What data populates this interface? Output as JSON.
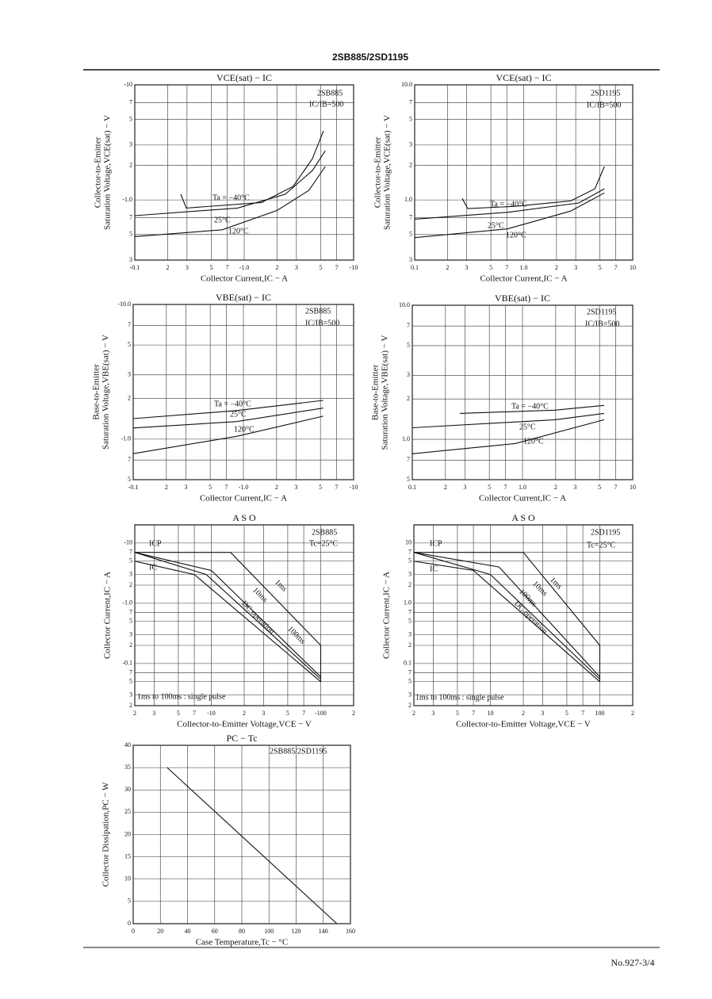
{
  "header": {
    "title": "2SB885/2SD1195"
  },
  "footer": {
    "page": "No.927-3/4"
  },
  "chart_data": [
    {
      "type": "line",
      "title": "VCE(sat) − IC",
      "xlabel": "Collector Current,IC − A",
      "ylabel": [
        "Collector-to-Emitter",
        "Saturation Voltage,VCE(sat) − V"
      ],
      "xscale": "log",
      "yscale": "log",
      "grid": true,
      "color": "#111",
      "xlim": [
        0.1,
        10
      ],
      "ylim": [
        0.3,
        10
      ],
      "xticks": [
        {
          "value": 0.1,
          "label": "-0.1"
        },
        {
          "value": 0.2,
          "label": "2"
        },
        {
          "value": 0.3,
          "label": "3"
        },
        {
          "value": 0.5,
          "label": "5"
        },
        {
          "value": 0.7,
          "label": "7"
        },
        {
          "value": 1,
          "label": "-1.0"
        },
        2,
        3,
        5,
        7,
        {
          "value": 10,
          "label": "-10"
        }
      ],
      "yticks": [
        {
          "value": 10,
          "label": "-10"
        },
        7,
        5,
        3,
        2,
        {
          "value": 1,
          "label": "-1.0"
        },
        {
          "value": 0.7,
          "label": "7"
        },
        {
          "value": 0.5,
          "label": "5"
        },
        {
          "value": 0.3,
          "label": "3"
        }
      ],
      "annotations": [
        "2SB885",
        "IC/IB=500"
      ],
      "series": [
        {
          "name": "Ta = −40°C",
          "x": [
            0.263,
            0.296,
            1.44,
            2.8,
            4.2,
            5.3
          ],
          "values": [
            1.12,
            0.85,
            0.95,
            1.31,
            2.28,
            3.98
          ]
        },
        {
          "name": "25°C",
          "x": [
            0.1,
            0.87,
            2.37,
            4.2,
            5.5
          ],
          "values": [
            0.73,
            0.85,
            1.12,
            1.8,
            2.67
          ]
        },
        {
          "name": "120°C",
          "x": [
            0.1,
            0.63,
            2.0,
            3.9,
            5.5
          ],
          "values": [
            0.48,
            0.55,
            0.81,
            1.21,
            1.95
          ]
        }
      ]
    },
    {
      "type": "line",
      "title": "VCE(sat) − IC",
      "xlabel": "Collector Current,IC − A",
      "ylabel": [
        "Collector-to-Emitter",
        "Saturation Voltage,VCE(sat) − V"
      ],
      "xscale": "log",
      "yscale": "log",
      "grid": true,
      "color": "#111",
      "xlim": [
        0.1,
        10
      ],
      "ylim": [
        0.3,
        10
      ],
      "xticks": [
        0.1,
        {
          "value": 0.2,
          "label": "2"
        },
        {
          "value": 0.3,
          "label": "3"
        },
        {
          "value": 0.5,
          "label": "5"
        },
        {
          "value": 0.7,
          "label": "7"
        },
        {
          "value": 1,
          "label": "1.0"
        },
        2,
        3,
        5,
        7,
        10
      ],
      "yticks": [
        {
          "value": 10,
          "label": "10.0"
        },
        7,
        5,
        3,
        2,
        {
          "value": 1,
          "label": "1.0"
        },
        {
          "value": 0.7,
          "label": "7"
        },
        {
          "value": 0.5,
          "label": "5"
        },
        {
          "value": 0.3,
          "label": "3"
        }
      ],
      "annotations": [
        "2SD1195",
        "IC/IB=500"
      ],
      "series": [
        {
          "name": "Ta = −40°C",
          "x": [
            0.273,
            0.307,
            0.84,
            2.7,
            4.5,
            5.5
          ],
          "values": [
            1.03,
            0.84,
            0.88,
            0.98,
            1.25,
            1.95
          ]
        },
        {
          "name": "25°C",
          "x": [
            0.1,
            0.71,
            3.2,
            5.5
          ],
          "values": [
            0.68,
            0.78,
            0.94,
            1.25
          ]
        },
        {
          "name": "120°C",
          "x": [
            0.1,
            0.71,
            2.7,
            5.5
          ],
          "values": [
            0.47,
            0.56,
            0.8,
            1.15
          ]
        }
      ]
    },
    {
      "type": "line",
      "title": "VBE(sat) − IC",
      "xlabel": "Collector Current,IC − A",
      "ylabel": [
        "Base-to-Emitter",
        "Saturation Voltage,VBE(sat) − V"
      ],
      "xscale": "log",
      "yscale": "log",
      "grid": true,
      "color": "#111",
      "xlim": [
        0.1,
        10
      ],
      "ylim": [
        0.5,
        10
      ],
      "xticks": [
        {
          "value": 0.1,
          "label": "-0.1"
        },
        {
          "value": 0.2,
          "label": "2"
        },
        {
          "value": 0.3,
          "label": "3"
        },
        {
          "value": 0.5,
          "label": "5"
        },
        {
          "value": 0.7,
          "label": "7"
        },
        {
          "value": 1,
          "label": "-1.0"
        },
        2,
        3,
        5,
        7,
        {
          "value": 10,
          "label": "-10"
        }
      ],
      "yticks": [
        {
          "value": 10,
          "label": "-10.0"
        },
        7,
        5,
        3,
        2,
        {
          "value": 1,
          "label": "-1.0"
        },
        {
          "value": 0.7,
          "label": "7"
        },
        {
          "value": 0.5,
          "label": "5"
        }
      ],
      "annotations": [
        "2SB885",
        "IC/IB=500"
      ],
      "series": [
        {
          "name": "Ta = −40°C",
          "x": [
            0.1,
            0.87,
            5.3
          ],
          "values": [
            1.42,
            1.63,
            1.94
          ]
        },
        {
          "name": "25°C",
          "x": [
            0.1,
            0.87,
            5.3
          ],
          "values": [
            1.21,
            1.35,
            1.7
          ]
        },
        {
          "name": "120°C",
          "x": [
            0.1,
            0.87,
            5.3
          ],
          "values": [
            0.78,
            1.05,
            1.48
          ]
        }
      ]
    },
    {
      "type": "line",
      "title": "VBE(sat) − IC",
      "xlabel": "Collector Current,IC − A",
      "ylabel": [
        "Base-to-Emitter",
        "Saturation Voltage,VBE(sat) − V"
      ],
      "xscale": "log",
      "yscale": "log",
      "grid": true,
      "color": "#111",
      "xlim": [
        0.1,
        10
      ],
      "ylim": [
        0.5,
        10
      ],
      "xticks": [
        0.1,
        {
          "value": 0.2,
          "label": "2"
        },
        {
          "value": 0.3,
          "label": "3"
        },
        {
          "value": 0.5,
          "label": "5"
        },
        {
          "value": 0.7,
          "label": "7"
        },
        {
          "value": 1,
          "label": "1.0"
        },
        2,
        3,
        5,
        7,
        10
      ],
      "yticks": [
        {
          "value": 10,
          "label": "10.0"
        },
        7,
        5,
        3,
        2,
        {
          "value": 1,
          "label": "1.0"
        },
        {
          "value": 0.7,
          "label": "7"
        },
        {
          "value": 0.5,
          "label": "5"
        }
      ],
      "annotations": [
        "2SD1195",
        "IC/IB=500"
      ],
      "series": [
        {
          "name": "Ta = −40°C",
          "x": [
            0.27,
            1.97,
            5.5
          ],
          "values": [
            1.56,
            1.65,
            1.79
          ]
        },
        {
          "name": "25°C",
          "x": [
            0.1,
            1.97,
            5.5
          ],
          "values": [
            1.22,
            1.4,
            1.56
          ]
        },
        {
          "name": "120°C",
          "x": [
            0.1,
            0.86,
            5.5
          ],
          "values": [
            0.78,
            0.93,
            1.4
          ]
        }
      ]
    },
    {
      "type": "line",
      "title": "A S O",
      "xlabel": "Collector-to-Emitter Voltage,VCE − V",
      "ylabel": [
        "Collector Current,IC − A"
      ],
      "xscale": "log",
      "yscale": "log",
      "grid": true,
      "color": "#111",
      "xlim": [
        2,
        200
      ],
      "ylim": [
        0.02,
        20
      ],
      "xticks": [
        2,
        3,
        5,
        7,
        {
          "value": 10,
          "label": "-10"
        },
        {
          "value": 20,
          "label": "2"
        },
        {
          "value": 30,
          "label": "3"
        },
        {
          "value": 50,
          "label": "5"
        },
        {
          "value": 70,
          "label": "7"
        },
        {
          "value": 100,
          "label": "-100"
        },
        {
          "value": 200,
          "label": "2"
        }
      ],
      "yticks": [
        {
          "value": 10,
          "label": "-10"
        },
        7,
        5,
        3,
        2,
        {
          "value": 1,
          "label": "-1.0"
        },
        {
          "value": 0.7,
          "label": "7"
        },
        {
          "value": 0.5,
          "label": "5"
        },
        {
          "value": 0.3,
          "label": "3"
        },
        {
          "value": 0.2,
          "label": "2"
        },
        {
          "value": 0.1,
          "label": "-0.1"
        },
        {
          "value": 0.07,
          "label": "7"
        },
        {
          "value": 0.05,
          "label": "5"
        },
        {
          "value": 0.03,
          "label": "3"
        },
        {
          "value": 0.02,
          "label": "2"
        }
      ],
      "annotations": [
        "2SB885",
        "Tc=25°C",
        "ICP",
        "IC",
        "1ms to 100ms : single pulse"
      ],
      "series": [
        {
          "name": "1ms",
          "x": [
            2,
            15,
            100,
            100
          ],
          "values": [
            7,
            7,
            0.2,
            0.05
          ]
        },
        {
          "name": "10ms",
          "x": [
            2,
            10,
            100
          ],
          "values": [
            7,
            3.5,
            0.06
          ]
        },
        {
          "name": "100ms",
          "x": [
            2,
            9,
            100
          ],
          "values": [
            7,
            3,
            0.055
          ]
        },
        {
          "name": "DC operation",
          "x": [
            2,
            7,
            100
          ],
          "values": [
            5,
            3,
            0.05
          ]
        }
      ]
    },
    {
      "type": "line",
      "title": "A S O",
      "xlabel": "Collector-to-Emitter Voltage,VCE − V",
      "ylabel": [
        "Collector Current,IC − A"
      ],
      "xscale": "log",
      "yscale": "log",
      "grid": true,
      "color": "#111",
      "xlim": [
        2,
        200
      ],
      "ylim": [
        0.02,
        20
      ],
      "xticks": [
        2,
        3,
        5,
        7,
        10,
        {
          "value": 20,
          "label": "2"
        },
        {
          "value": 30,
          "label": "3"
        },
        {
          "value": 50,
          "label": "5"
        },
        {
          "value": 70,
          "label": "7"
        },
        100,
        {
          "value": 200,
          "label": "2"
        }
      ],
      "yticks": [
        10,
        7,
        5,
        3,
        2,
        {
          "value": 1,
          "label": "1.0"
        },
        {
          "value": 0.7,
          "label": "7"
        },
        {
          "value": 0.5,
          "label": "5"
        },
        {
          "value": 0.3,
          "label": "3"
        },
        {
          "value": 0.2,
          "label": "2"
        },
        0.1,
        {
          "value": 0.07,
          "label": "7"
        },
        {
          "value": 0.05,
          "label": "5"
        },
        {
          "value": 0.03,
          "label": "3"
        },
        {
          "value": 0.02,
          "label": "2"
        }
      ],
      "annotations": [
        "2SD1195",
        "Tc=25°C",
        "ICP",
        "IC",
        "1ms to 100ms : single pulse"
      ],
      "series": [
        {
          "name": "1ms",
          "x": [
            2,
            20,
            100,
            100
          ],
          "values": [
            7,
            7,
            0.2,
            0.05
          ]
        },
        {
          "name": "10ms",
          "x": [
            2,
            12,
            100
          ],
          "values": [
            7,
            4,
            0.06
          ]
        },
        {
          "name": "100ms",
          "x": [
            2,
            10,
            100
          ],
          "values": [
            7,
            3,
            0.055
          ]
        },
        {
          "name": "DC operation",
          "x": [
            2,
            7,
            100
          ],
          "values": [
            5,
            3.5,
            0.05
          ]
        }
      ]
    },
    {
      "type": "line",
      "title": "PC − Tc",
      "xlabel": "Case Temperature,Tc − °C",
      "ylabel": [
        "Collector Dissipation,PC − W"
      ],
      "xscale": "linear",
      "yscale": "linear",
      "grid": true,
      "color": "#111",
      "xlim": [
        0,
        160
      ],
      "ylim": [
        0,
        40
      ],
      "xticks": [
        0,
        20,
        40,
        60,
        80,
        100,
        120,
        140,
        160
      ],
      "yticks": [
        0,
        5,
        10,
        15,
        20,
        25,
        30,
        35,
        40
      ],
      "annotations": [
        "2SB885/2SD1195"
      ],
      "series": [
        {
          "x": [
            25,
            150
          ],
          "values": [
            35,
            0
          ]
        }
      ]
    }
  ]
}
